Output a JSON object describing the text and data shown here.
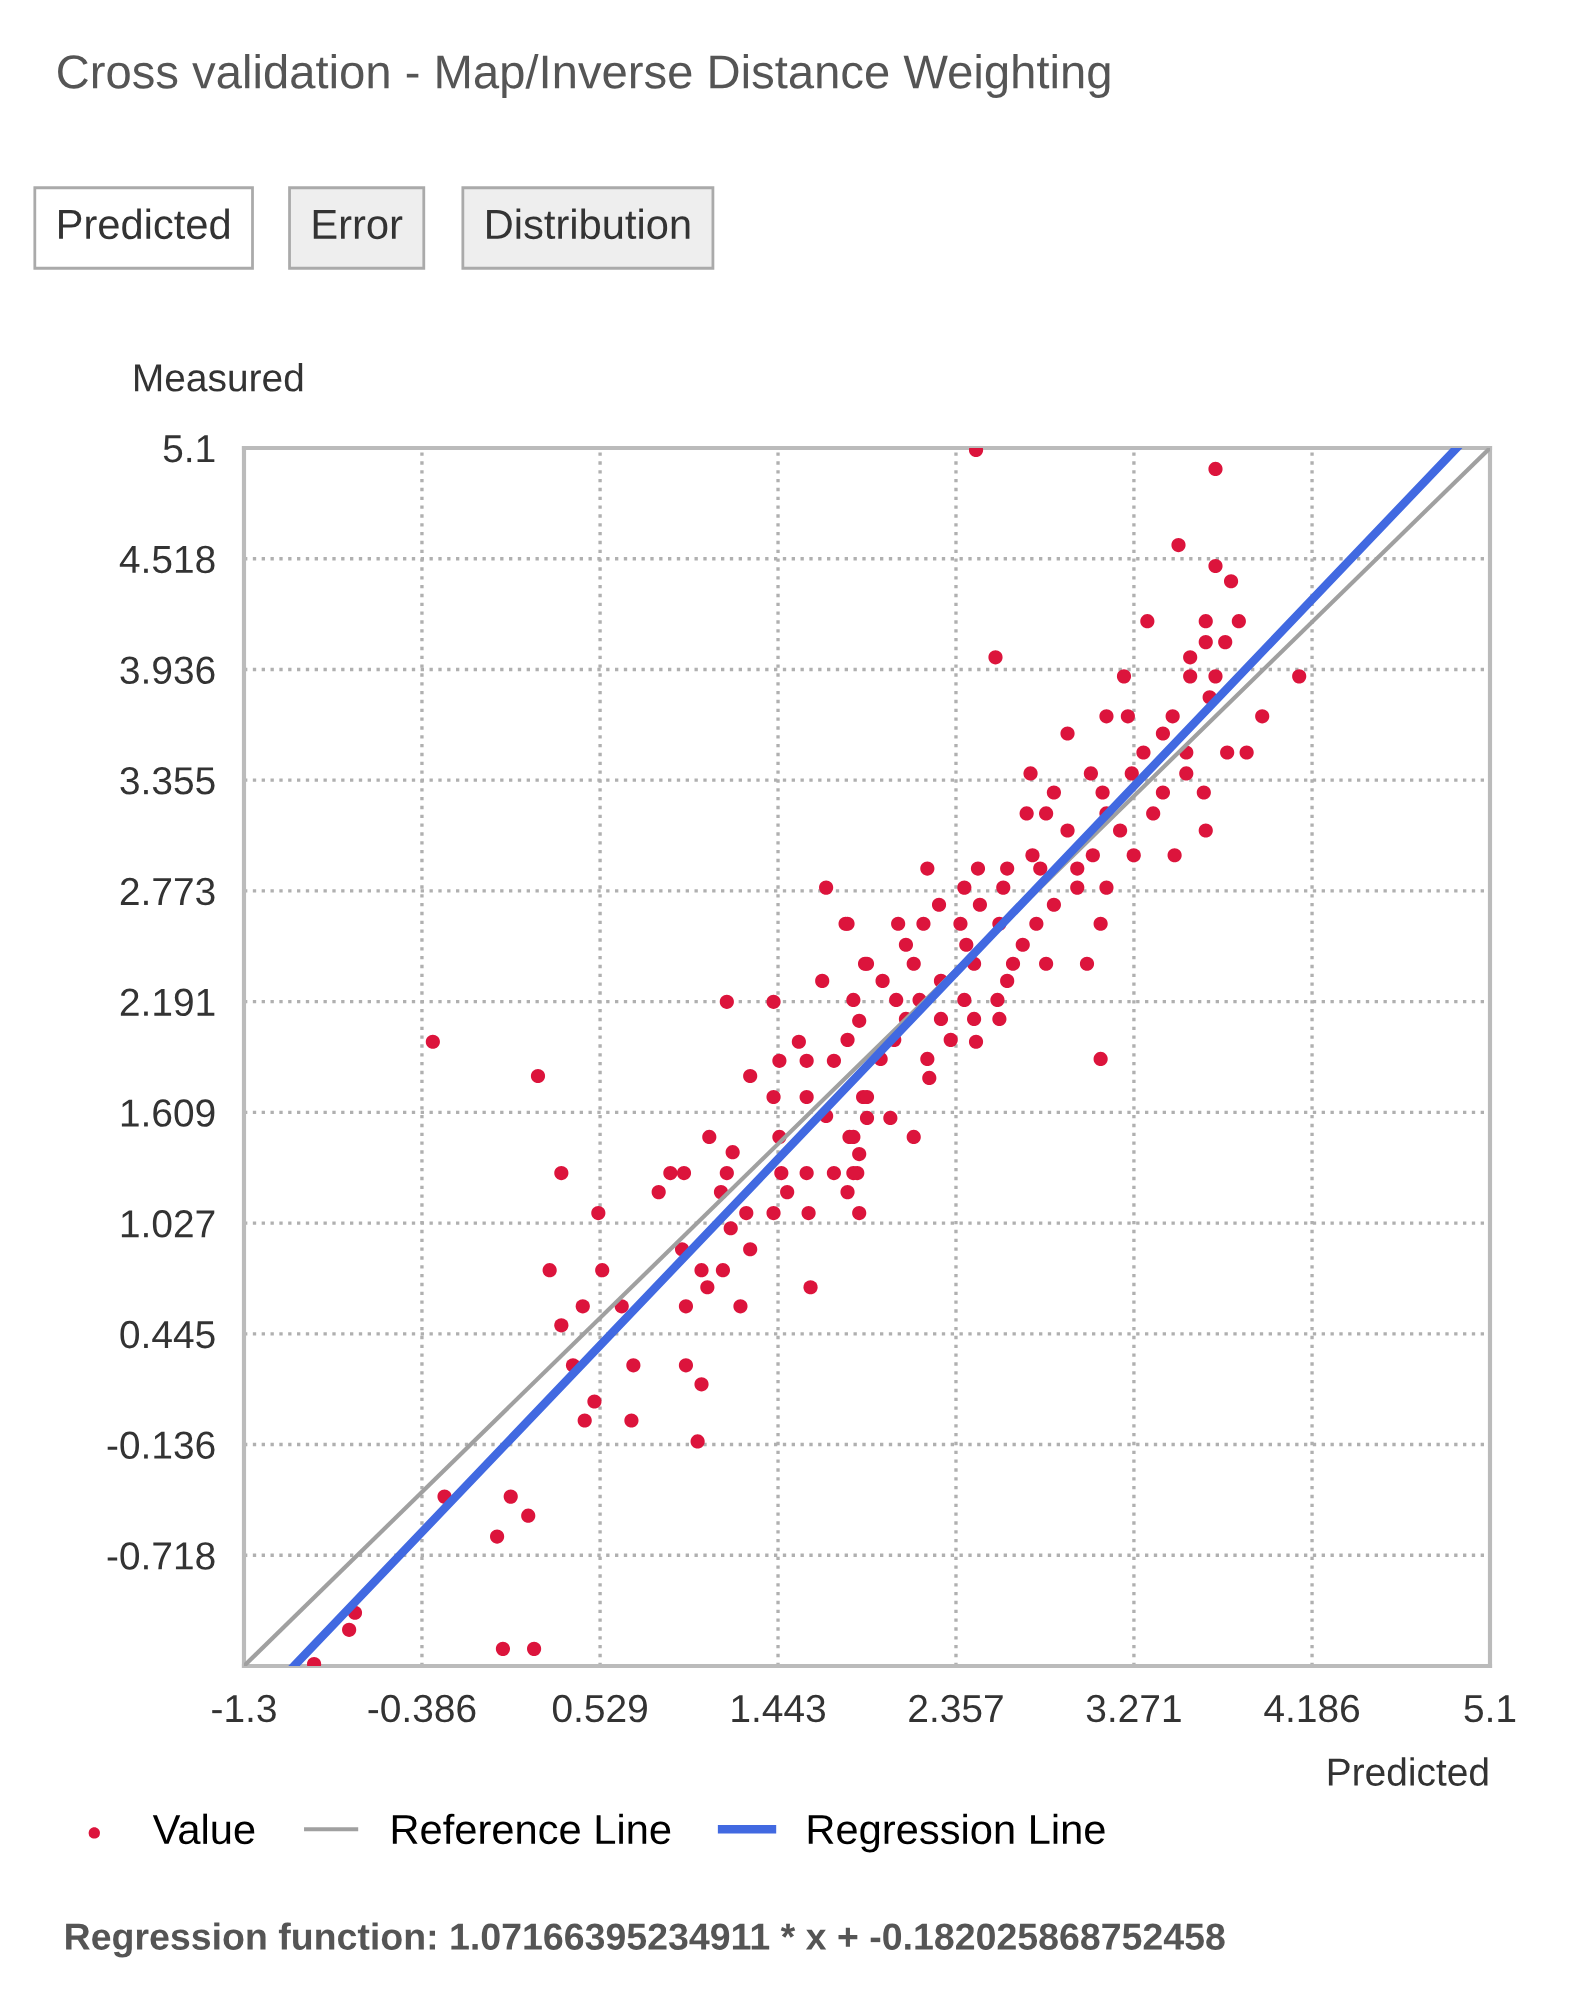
{
  "chart_data": {
    "type": "scatter",
    "title": "Cross validation - Map/Inverse Distance Weighting",
    "xlabel": "Predicted",
    "ylabel": "Measured",
    "annotations": [
      "Predicted",
      "Error",
      "Distribution",
      "Regression function: 1.07166395234911 * x + -0.182025868752458"
    ],
    "xlim": [
      -1.3,
      5.1
    ],
    "ylim": [
      -1.3,
      5.1
    ],
    "xticks": [
      -1.3,
      -0.386,
      0.529,
      1.443,
      2.357,
      3.271,
      4.186,
      5.1
    ],
    "yticks": [
      -0.718,
      -0.136,
      0.445,
      1.027,
      1.609,
      2.191,
      2.773,
      3.355,
      3.936,
      4.518,
      5.1
    ],
    "grid": true,
    "legend": "bottom",
    "series": [
      {
        "name": "Value",
        "marker": "circle",
        "color": "#dc143c",
        "x": [
          1.69,
          1.79,
          1.89,
          1.67,
          1.18,
          1.42,
          -0.33,
          0.21,
          1.3,
          1.55,
          0.33,
          0.52,
          0.27,
          0.54,
          0.44,
          0.33,
          0.64,
          0.39,
          0.7,
          0.5,
          0.45,
          0.69,
          -0.27,
          0.07,
          0.16,
          0.0,
          -0.73,
          -0.76,
          0.03,
          0.19,
          -0.94,
          0.97,
          1.05,
          1.03,
          1.61,
          0.97,
          1.25,
          1.08,
          1.05,
          1.16,
          0.95,
          1.3,
          1.2,
          0.89,
          0.96,
          0.83,
          1.09,
          1.21,
          1.18,
          1.15,
          1.28,
          1.42,
          1.6,
          1.49,
          1.46,
          1.59,
          1.73,
          1.85,
          1.8,
          1.86,
          1.45,
          1.45,
          1.42,
          1.59,
          1.69,
          1.81,
          1.88,
          1.59,
          1.73,
          1.86,
          2.46,
          3.69,
          3.5,
          3.69,
          3.77,
          3.34,
          3.64,
          3.81,
          3.64,
          3.74,
          2.56,
          3.56,
          3.22,
          3.56,
          3.69,
          4.12,
          3.66,
          3.13,
          3.24,
          3.47,
          3.93,
          2.93,
          3.42,
          3.32,
          3.54,
          3.75,
          3.85,
          3.54,
          2.74,
          3.05,
          3.26,
          2.86,
          3.11,
          3.42,
          3.63,
          2.72,
          2.82,
          3.13,
          3.37,
          2.93,
          3.2,
          3.64,
          2.75,
          3.06,
          3.27,
          3.48,
          2.21,
          2.47,
          2.62,
          2.79,
          2.98,
          2.4,
          2.6,
          2.98,
          3.13,
          2.27,
          2.48,
          2.86,
          1.8,
          2.06,
          2.19,
          2.38,
          2.58,
          2.77,
          3.1,
          2.1,
          2.41,
          2.7,
          1.9,
          2.14,
          2.45,
          2.65,
          2.82,
          3.03,
          1.98,
          2.28,
          2.62,
          1.83,
          2.05,
          2.17,
          2.4,
          2.57,
          2.1,
          2.28,
          2.45,
          2.58,
          1.8,
          2.04,
          2.33,
          2.46,
          1.97,
          2.21,
          3.1,
          2.14,
          2.02,
          1.9,
          1.83,
          1.86,
          1.83,
          2.22,
          1.9
        ],
        "values": [
          2.79,
          2.6,
          2.39,
          2.3,
          2.19,
          2.19,
          1.98,
          1.8,
          1.8,
          1.98,
          1.29,
          1.08,
          0.78,
          0.78,
          0.59,
          0.49,
          0.59,
          0.28,
          0.28,
          0.09,
          -0.01,
          -0.01,
          -0.41,
          -0.41,
          -0.51,
          -0.62,
          -1.02,
          -1.11,
          -1.21,
          -1.21,
          -1.29,
          0.28,
          0.18,
          -0.12,
          0.69,
          0.59,
          0.59,
          0.69,
          0.78,
          0.78,
          0.89,
          0.89,
          1.0,
          1.29,
          1.29,
          1.19,
          1.48,
          1.4,
          1.29,
          1.19,
          1.08,
          1.08,
          1.08,
          1.19,
          1.29,
          1.29,
          1.29,
          1.29,
          1.19,
          1.08,
          1.48,
          1.88,
          1.69,
          1.69,
          1.59,
          1.48,
          1.69,
          1.88,
          1.88,
          2.09,
          5.09,
          4.99,
          4.59,
          4.48,
          4.4,
          4.19,
          4.19,
          4.19,
          4.08,
          4.08,
          4.0,
          4.0,
          3.9,
          3.9,
          3.9,
          3.9,
          3.79,
          3.69,
          3.69,
          3.69,
          3.69,
          3.6,
          3.6,
          3.5,
          3.5,
          3.5,
          3.5,
          3.39,
          3.39,
          3.39,
          3.39,
          3.29,
          3.29,
          3.29,
          3.29,
          3.18,
          3.18,
          3.18,
          3.18,
          3.09,
          3.09,
          3.09,
          2.96,
          2.96,
          2.96,
          2.96,
          2.89,
          2.89,
          2.89,
          2.89,
          2.89,
          2.79,
          2.79,
          2.79,
          2.79,
          2.7,
          2.7,
          2.7,
          2.6,
          2.6,
          2.6,
          2.6,
          2.6,
          2.6,
          2.6,
          2.49,
          2.49,
          2.49,
          2.39,
          2.39,
          2.39,
          2.39,
          2.39,
          2.39,
          2.3,
          2.3,
          2.3,
          2.2,
          2.2,
          2.2,
          2.2,
          2.2,
          2.1,
          2.1,
          2.1,
          2.1,
          1.99,
          1.99,
          1.99,
          1.98,
          1.89,
          1.89,
          1.89,
          1.48,
          1.58,
          1.58,
          1.48,
          1.39,
          1.29,
          1.79,
          1.69
        ]
      },
      {
        "name": "Reference Line",
        "type": "line",
        "color": "#a0a0a0",
        "x": [
          -1.3,
          5.1
        ],
        "values": [
          -1.3,
          5.1
        ]
      },
      {
        "name": "Regression Line",
        "type": "line",
        "color": "#4169e1",
        "x": [
          -1.043,
          4.929
        ],
        "values": [
          -1.3,
          5.1
        ]
      }
    ]
  }
}
